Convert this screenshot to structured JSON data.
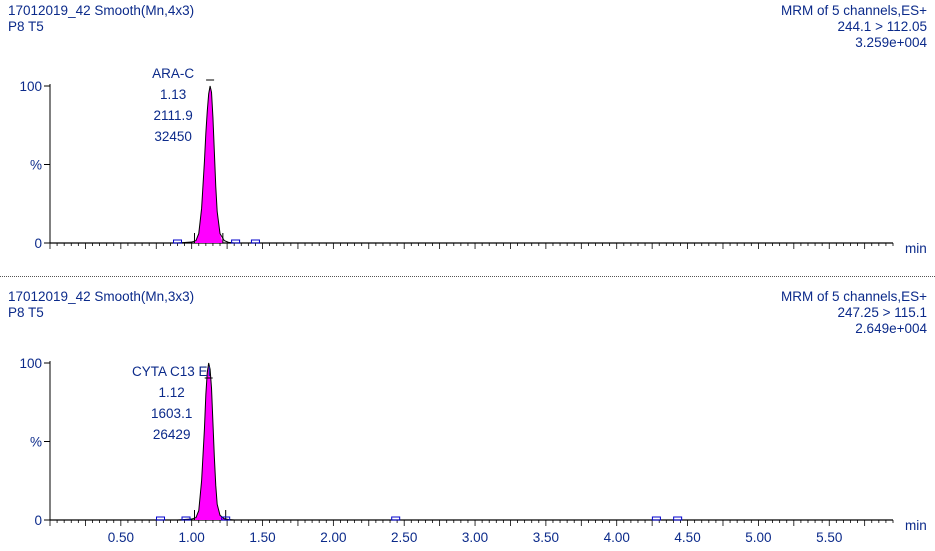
{
  "colors": {
    "trace": "#000000",
    "peak_fill": "#ff00ff",
    "axis": "#000000",
    "header_text": "#0b2a8a",
    "axis_text": "#0b2a8a",
    "annotation_text": "#0b2a8a",
    "baseline_markers": "#0000cc"
  },
  "chart_data": [
    {
      "type": "line",
      "header_left_1": "17012019_42 Smooth(Mn,4x3)",
      "header_left_2": "P8 T5",
      "header_right_1": "MRM of 5 channels,ES+",
      "header_right_2": "244.1 > 112.05",
      "header_right_3": "3.259e+004",
      "ylabel": "%",
      "xlabel": "min",
      "xlim": [
        0.0,
        5.95
      ],
      "ylim": [
        0,
        100
      ],
      "yticks": [
        "0",
        "100"
      ],
      "peak": {
        "name": "ARA-C",
        "rt": "1.13",
        "area": "2111.9",
        "height": "32450",
        "apex_x": 1.13
      },
      "x": [
        0.0,
        0.9,
        0.95,
        1.0,
        1.03,
        1.05,
        1.07,
        1.09,
        1.1,
        1.11,
        1.12,
        1.13,
        1.14,
        1.15,
        1.16,
        1.17,
        1.18,
        1.2,
        1.23,
        1.26,
        1.3,
        1.4,
        5.95
      ],
      "y": [
        0.0,
        0.0,
        0.3,
        0.6,
        1.5,
        6.0,
        22.0,
        52.0,
        70.0,
        84.0,
        95.0,
        100.0,
        96.0,
        80.0,
        58.0,
        36.0,
        20.0,
        6.0,
        1.5,
        0.4,
        0.0,
        0.0,
        0.0
      ],
      "integration_start": 1.02,
      "integration_end": 1.22,
      "baseline_markers_x": [
        0.9,
        1.31,
        1.45
      ]
    },
    {
      "type": "line",
      "header_left_1": "17012019_42 Smooth(Mn,3x3)",
      "header_left_2": "P8 T5",
      "header_right_1": "MRM of 5 channels,ES+",
      "header_right_2": "247.25 > 115.1",
      "header_right_3": "2.649e+004",
      "ylabel": "%",
      "xlabel": "min",
      "xlim": [
        0.0,
        5.95
      ],
      "ylim": [
        0,
        100
      ],
      "xticks": [
        "0.50",
        "1.00",
        "1.50",
        "2.00",
        "2.50",
        "3.00",
        "3.50",
        "4.00",
        "4.50",
        "5.00",
        "5.50"
      ],
      "xtick_values": [
        0.5,
        1.0,
        1.5,
        2.0,
        2.5,
        3.0,
        3.5,
        4.0,
        4.5,
        5.0,
        5.5
      ],
      "yticks": [
        "0",
        "100"
      ],
      "peak": {
        "name": "CYTA C13 EI",
        "rt": "1.12",
        "area": "1603.1",
        "height": "26429",
        "apex_x": 1.12
      },
      "x": [
        0.0,
        0.9,
        0.95,
        1.0,
        1.03,
        1.05,
        1.07,
        1.09,
        1.1,
        1.11,
        1.12,
        1.13,
        1.14,
        1.15,
        1.16,
        1.17,
        1.18,
        1.2,
        1.23,
        1.26,
        1.3,
        1.4,
        5.95
      ],
      "y": [
        0.0,
        0.0,
        0.3,
        0.6,
        1.5,
        6.0,
        25.0,
        58.0,
        80.0,
        94.0,
        100.0,
        96.0,
        84.0,
        62.0,
        40.0,
        22.0,
        10.0,
        3.0,
        0.8,
        0.3,
        0.0,
        0.0,
        0.0
      ],
      "integration_start": 1.02,
      "integration_end": 1.24,
      "baseline_markers_x": [
        0.78,
        0.96,
        1.24,
        2.44,
        4.28,
        4.43
      ]
    }
  ]
}
